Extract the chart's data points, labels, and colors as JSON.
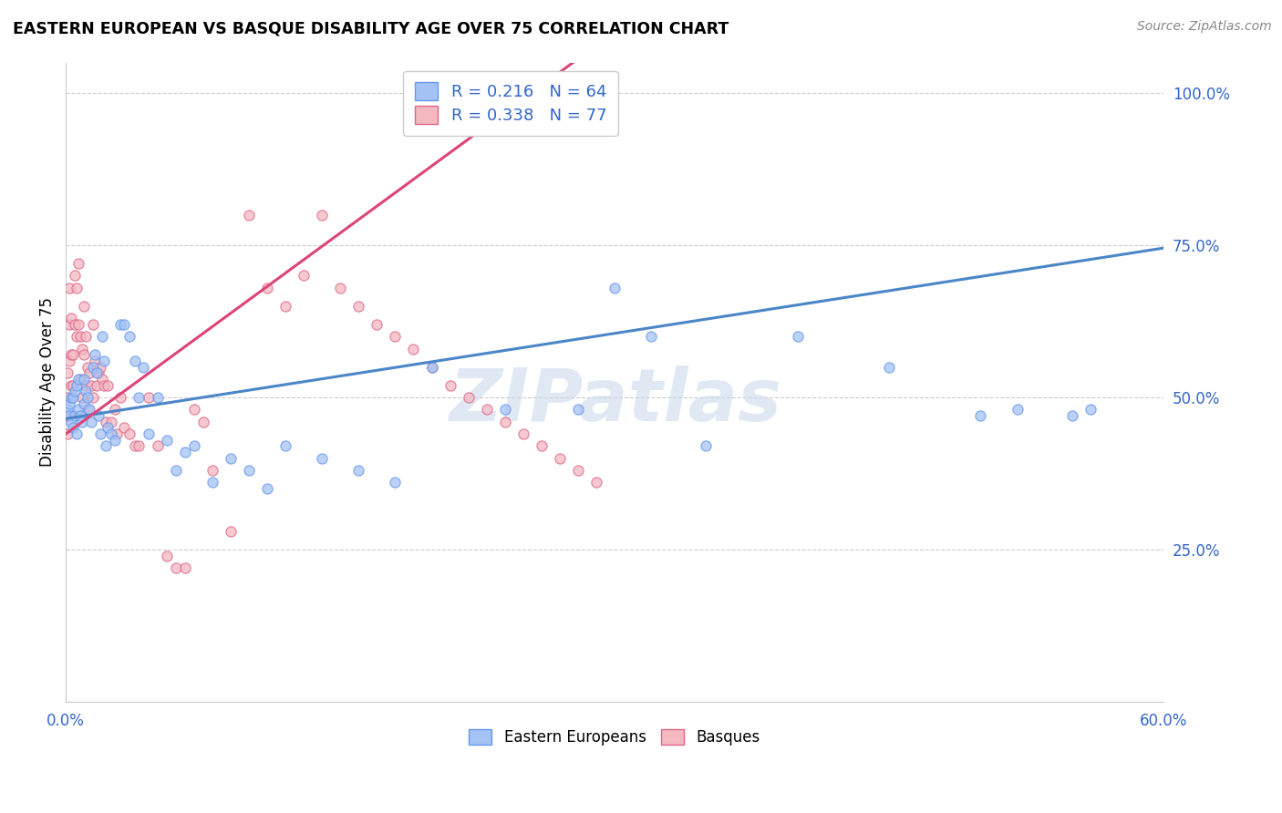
{
  "title": "EASTERN EUROPEAN VS BASQUE DISABILITY AGE OVER 75 CORRELATION CHART",
  "source": "Source: ZipAtlas.com",
  "ylabel": "Disability Age Over 75",
  "xlim": [
    0.0,
    0.6
  ],
  "ylim": [
    0.0,
    1.05
  ],
  "yticks_right": [
    0.25,
    0.5,
    0.75,
    1.0
  ],
  "ytick_labels_right": [
    "25.0%",
    "50.0%",
    "75.0%",
    "100.0%"
  ],
  "legend1_label": "Eastern Europeans",
  "legend2_label": "Basques",
  "R_blue": 0.216,
  "N_blue": 64,
  "R_pink": 0.338,
  "N_pink": 77,
  "blue_color": "#a4c2f4",
  "pink_color": "#f4b8c1",
  "blue_edge_color": "#6699ee",
  "pink_edge_color": "#dd6688",
  "blue_line_color": "#4a86c8",
  "pink_line_color": "#dd4477",
  "watermark": "ZIPatlas",
  "blue_line_slope": 0.467,
  "blue_line_intercept": 0.465,
  "pink_line_slope": 2.2,
  "pink_line_intercept": 0.44,
  "blue_scatter_x": [
    0.001,
    0.002,
    0.002,
    0.003,
    0.003,
    0.004,
    0.004,
    0.005,
    0.005,
    0.006,
    0.006,
    0.007,
    0.007,
    0.008,
    0.009,
    0.01,
    0.01,
    0.011,
    0.012,
    0.013,
    0.014,
    0.015,
    0.016,
    0.017,
    0.018,
    0.019,
    0.02,
    0.021,
    0.022,
    0.023,
    0.025,
    0.027,
    0.03,
    0.032,
    0.035,
    0.038,
    0.04,
    0.042,
    0.045,
    0.05,
    0.055,
    0.06,
    0.065,
    0.07,
    0.08,
    0.09,
    0.1,
    0.11,
    0.12,
    0.14,
    0.16,
    0.18,
    0.2,
    0.24,
    0.28,
    0.3,
    0.32,
    0.35,
    0.4,
    0.45,
    0.5,
    0.52,
    0.55,
    0.56
  ],
  "blue_scatter_y": [
    0.48,
    0.49,
    0.47,
    0.5,
    0.46,
    0.5,
    0.45,
    0.51,
    0.47,
    0.52,
    0.44,
    0.53,
    0.48,
    0.47,
    0.46,
    0.53,
    0.49,
    0.51,
    0.5,
    0.48,
    0.46,
    0.55,
    0.57,
    0.54,
    0.47,
    0.44,
    0.6,
    0.56,
    0.42,
    0.45,
    0.44,
    0.43,
    0.62,
    0.62,
    0.6,
    0.56,
    0.5,
    0.55,
    0.44,
    0.5,
    0.43,
    0.38,
    0.41,
    0.42,
    0.36,
    0.4,
    0.38,
    0.35,
    0.42,
    0.4,
    0.38,
    0.36,
    0.55,
    0.48,
    0.48,
    0.68,
    0.6,
    0.42,
    0.6,
    0.55,
    0.47,
    0.48,
    0.47,
    0.48
  ],
  "pink_scatter_x": [
    0.001,
    0.001,
    0.001,
    0.001,
    0.002,
    0.002,
    0.002,
    0.003,
    0.003,
    0.003,
    0.004,
    0.004,
    0.005,
    0.005,
    0.006,
    0.006,
    0.007,
    0.007,
    0.008,
    0.008,
    0.009,
    0.009,
    0.01,
    0.01,
    0.011,
    0.011,
    0.012,
    0.012,
    0.013,
    0.014,
    0.015,
    0.015,
    0.016,
    0.017,
    0.018,
    0.019,
    0.02,
    0.021,
    0.022,
    0.023,
    0.025,
    0.027,
    0.028,
    0.03,
    0.032,
    0.035,
    0.038,
    0.04,
    0.045,
    0.05,
    0.055,
    0.06,
    0.065,
    0.07,
    0.075,
    0.08,
    0.09,
    0.1,
    0.11,
    0.12,
    0.13,
    0.14,
    0.15,
    0.16,
    0.17,
    0.18,
    0.19,
    0.2,
    0.21,
    0.22,
    0.23,
    0.24,
    0.25,
    0.26,
    0.27,
    0.28,
    0.29
  ],
  "pink_scatter_y": [
    0.54,
    0.5,
    0.47,
    0.44,
    0.68,
    0.62,
    0.56,
    0.63,
    0.57,
    0.52,
    0.57,
    0.52,
    0.7,
    0.62,
    0.68,
    0.6,
    0.72,
    0.62,
    0.6,
    0.53,
    0.58,
    0.5,
    0.65,
    0.57,
    0.6,
    0.52,
    0.55,
    0.48,
    0.54,
    0.52,
    0.62,
    0.5,
    0.56,
    0.52,
    0.54,
    0.55,
    0.53,
    0.52,
    0.46,
    0.52,
    0.46,
    0.48,
    0.44,
    0.5,
    0.45,
    0.44,
    0.42,
    0.42,
    0.5,
    0.42,
    0.24,
    0.22,
    0.22,
    0.48,
    0.46,
    0.38,
    0.28,
    0.8,
    0.68,
    0.65,
    0.7,
    0.8,
    0.68,
    0.65,
    0.62,
    0.6,
    0.58,
    0.55,
    0.52,
    0.5,
    0.48,
    0.46,
    0.44,
    0.42,
    0.4,
    0.38,
    0.36
  ]
}
